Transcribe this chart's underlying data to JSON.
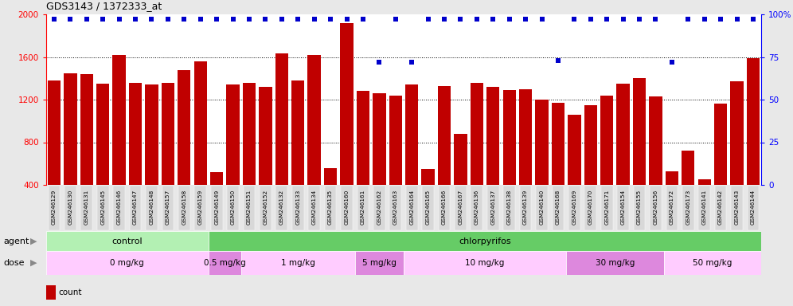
{
  "title": "GDS3143 / 1372333_at",
  "samples": [
    "GSM246129",
    "GSM246130",
    "GSM246131",
    "GSM246145",
    "GSM246146",
    "GSM246147",
    "GSM246148",
    "GSM246157",
    "GSM246158",
    "GSM246159",
    "GSM246149",
    "GSM246150",
    "GSM246151",
    "GSM246152",
    "GSM246132",
    "GSM246133",
    "GSM246134",
    "GSM246135",
    "GSM246160",
    "GSM246161",
    "GSM246162",
    "GSM246163",
    "GSM246164",
    "GSM246165",
    "GSM246166",
    "GSM246167",
    "GSM246136",
    "GSM246137",
    "GSM246138",
    "GSM246139",
    "GSM246140",
    "GSM246168",
    "GSM246169",
    "GSM246170",
    "GSM246171",
    "GSM246154",
    "GSM246155",
    "GSM246156",
    "GSM246172",
    "GSM246173",
    "GSM246141",
    "GSM246142",
    "GSM246143",
    "GSM246144"
  ],
  "counts": [
    1380,
    1450,
    1440,
    1350,
    1620,
    1360,
    1340,
    1360,
    1480,
    1560,
    520,
    1340,
    1360,
    1320,
    1630,
    1380,
    1620,
    560,
    1920,
    1280,
    1260,
    1240,
    1340,
    550,
    1330,
    880,
    1360,
    1320,
    1290,
    1300,
    1200,
    1170,
    1060,
    1150,
    1240,
    1350,
    1400,
    1230,
    530,
    720,
    450,
    1160,
    1370,
    1590
  ],
  "percentiles": [
    97,
    97,
    97,
    97,
    97,
    97,
    97,
    97,
    97,
    97,
    97,
    97,
    97,
    97,
    97,
    97,
    97,
    97,
    97,
    97,
    72,
    97,
    72,
    97,
    97,
    97,
    97,
    97,
    97,
    97,
    97,
    73,
    97,
    97,
    97,
    97,
    97,
    97,
    72,
    97,
    97,
    97,
    97,
    97
  ],
  "bar_color": "#c00000",
  "dot_color": "#0000cc",
  "ylim_left": [
    400,
    2000
  ],
  "ylim_right": [
    0,
    100
  ],
  "yticks_left": [
    400,
    800,
    1200,
    1600,
    2000
  ],
  "yticks_right": [
    0,
    25,
    50,
    75,
    100
  ],
  "grid_values": [
    800,
    1200,
    1600
  ],
  "agent_groups": [
    {
      "label": "control",
      "start": 0,
      "end": 10,
      "color": "#b3f0b3"
    },
    {
      "label": "chlorpyrifos",
      "start": 10,
      "end": 44,
      "color": "#66cc66"
    }
  ],
  "dose_groups": [
    {
      "label": "0 mg/kg",
      "start": 0,
      "end": 10,
      "color": "#ffccff"
    },
    {
      "label": "0.5 mg/kg",
      "start": 10,
      "end": 12,
      "color": "#dd88dd"
    },
    {
      "label": "1 mg/kg",
      "start": 12,
      "end": 19,
      "color": "#ffccff"
    },
    {
      "label": "5 mg/kg",
      "start": 19,
      "end": 22,
      "color": "#dd88dd"
    },
    {
      "label": "10 mg/kg",
      "start": 22,
      "end": 32,
      "color": "#ffccff"
    },
    {
      "label": "30 mg/kg",
      "start": 32,
      "end": 38,
      "color": "#dd88dd"
    },
    {
      "label": "50 mg/kg",
      "start": 38,
      "end": 44,
      "color": "#ffccff"
    }
  ],
  "fig_bg_color": "#e8e8e8",
  "plot_bg_color": "#ffffff",
  "tick_bg_color": "#d8d8d8"
}
